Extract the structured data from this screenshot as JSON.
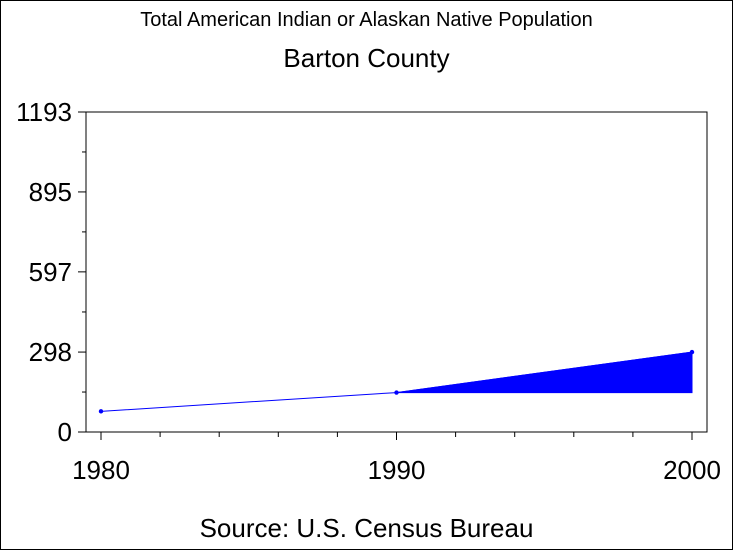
{
  "title": "Total American Indian or Alaskan Native Population",
  "subtitle": "Barton County",
  "source": "Source: U.S. Census Bureau",
  "colors": {
    "series": "#0000ff",
    "axis": "#000000",
    "background": "#ffffff"
  },
  "chart_data": {
    "type": "area",
    "title": "Total American Indian or Alaskan Native Population",
    "subtitle": "Barton County",
    "x": [
      1980,
      1990,
      2000
    ],
    "values": [
      77,
      147,
      298
    ],
    "baseline_from_1990": 147,
    "xlim": [
      1980,
      2000
    ],
    "ylim": [
      0,
      1193
    ],
    "x_ticks": [
      "1980",
      "1990",
      "2000"
    ],
    "y_ticks": [
      "0",
      "298",
      "597",
      "895",
      "1193"
    ],
    "y_tick_values": [
      0,
      298,
      597,
      895,
      1193
    ],
    "grid": false,
    "legend": "none"
  }
}
